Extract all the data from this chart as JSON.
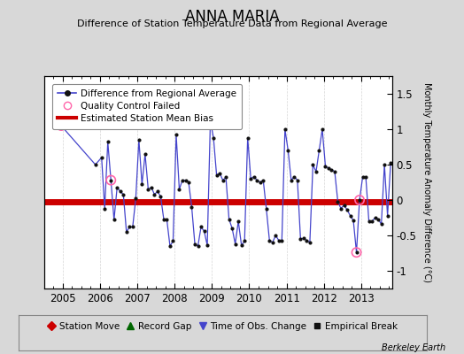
{
  "title": "ANNA MARIA",
  "subtitle": "Difference of Station Temperature Data from Regional Average",
  "ylabel": "Monthly Temperature Anomaly Difference (°C)",
  "credit": "Berkeley Earth",
  "xlim": [
    2004.5,
    2013.83
  ],
  "ylim": [
    -1.25,
    1.75
  ],
  "yticks": [
    -1.0,
    -0.5,
    0.0,
    0.5,
    1.0,
    1.5
  ],
  "mean_bias": -0.03,
  "mean_bias_color": "#cc0000",
  "line_color": "#4444cc",
  "marker_color": "#111111",
  "qc_color": "#ff66aa",
  "bg_color": "#d8d8d8",
  "plot_bg": "#ffffff",
  "time_series": [
    2004.958,
    2005.875,
    2006.042,
    2006.125,
    2006.208,
    2006.292,
    2006.375,
    2006.458,
    2006.542,
    2006.625,
    2006.708,
    2006.792,
    2006.875,
    2006.958,
    2007.042,
    2007.125,
    2007.208,
    2007.292,
    2007.375,
    2007.458,
    2007.542,
    2007.625,
    2007.708,
    2007.792,
    2007.875,
    2007.958,
    2008.042,
    2008.125,
    2008.208,
    2008.292,
    2008.375,
    2008.458,
    2008.542,
    2008.625,
    2008.708,
    2008.792,
    2008.875,
    2008.958,
    2009.042,
    2009.125,
    2009.208,
    2009.292,
    2009.375,
    2009.458,
    2009.542,
    2009.625,
    2009.708,
    2009.792,
    2009.875,
    2009.958,
    2010.042,
    2010.125,
    2010.208,
    2010.292,
    2010.375,
    2010.458,
    2010.542,
    2010.625,
    2010.708,
    2010.792,
    2010.875,
    2010.958,
    2011.042,
    2011.125,
    2011.208,
    2011.292,
    2011.375,
    2011.458,
    2011.542,
    2011.625,
    2011.708,
    2011.792,
    2011.875,
    2011.958,
    2012.042,
    2012.125,
    2012.208,
    2012.292,
    2012.375,
    2012.458,
    2012.542,
    2012.625,
    2012.708,
    2012.792,
    2012.875,
    2012.958,
    2013.042,
    2013.125,
    2013.208,
    2013.292,
    2013.375,
    2013.458,
    2013.542,
    2013.625,
    2013.708,
    2013.792
  ],
  "values": [
    1.05,
    0.5,
    0.6,
    -0.12,
    0.82,
    0.28,
    -0.28,
    0.18,
    0.12,
    0.08,
    -0.45,
    -0.38,
    -0.38,
    0.02,
    0.85,
    0.22,
    0.65,
    0.15,
    0.18,
    0.08,
    0.12,
    0.05,
    -0.27,
    -0.28,
    -0.65,
    -0.58,
    0.92,
    0.15,
    0.28,
    0.28,
    0.25,
    -0.1,
    -0.62,
    -0.65,
    -0.38,
    -0.44,
    -0.64,
    1.12,
    0.88,
    0.35,
    0.38,
    0.28,
    0.32,
    -0.27,
    -0.4,
    -0.62,
    -0.3,
    -0.64,
    -0.58,
    0.88,
    0.3,
    0.33,
    0.28,
    0.25,
    0.28,
    -0.12,
    -0.57,
    -0.6,
    -0.5,
    -0.57,
    -0.57,
    1.0,
    0.7,
    0.28,
    0.33,
    0.28,
    -0.55,
    -0.54,
    -0.57,
    -0.6,
    0.5,
    0.4,
    0.7,
    1.0,
    0.48,
    0.45,
    0.43,
    0.4,
    -0.02,
    -0.12,
    -0.07,
    -0.14,
    -0.22,
    -0.29,
    -0.74,
    0.0,
    0.33,
    0.33,
    -0.3,
    -0.3,
    -0.25,
    -0.27,
    -0.34,
    0.5,
    -0.22,
    0.52
  ],
  "qc_failed_x": [
    2004.958,
    2006.292,
    2008.958,
    2012.875,
    2012.958
  ],
  "qc_failed_y": [
    1.05,
    0.28,
    1.12,
    -0.74,
    0.0
  ],
  "xtick_positions": [
    2005,
    2006,
    2007,
    2008,
    2009,
    2010,
    2011,
    2012,
    2013
  ],
  "xtick_labels": [
    "2005",
    "2006",
    "2007",
    "2008",
    "2009",
    "2010",
    "2011",
    "2012",
    "2013"
  ],
  "grid_color": "#cccccc",
  "legend_bg": "#ffffff"
}
